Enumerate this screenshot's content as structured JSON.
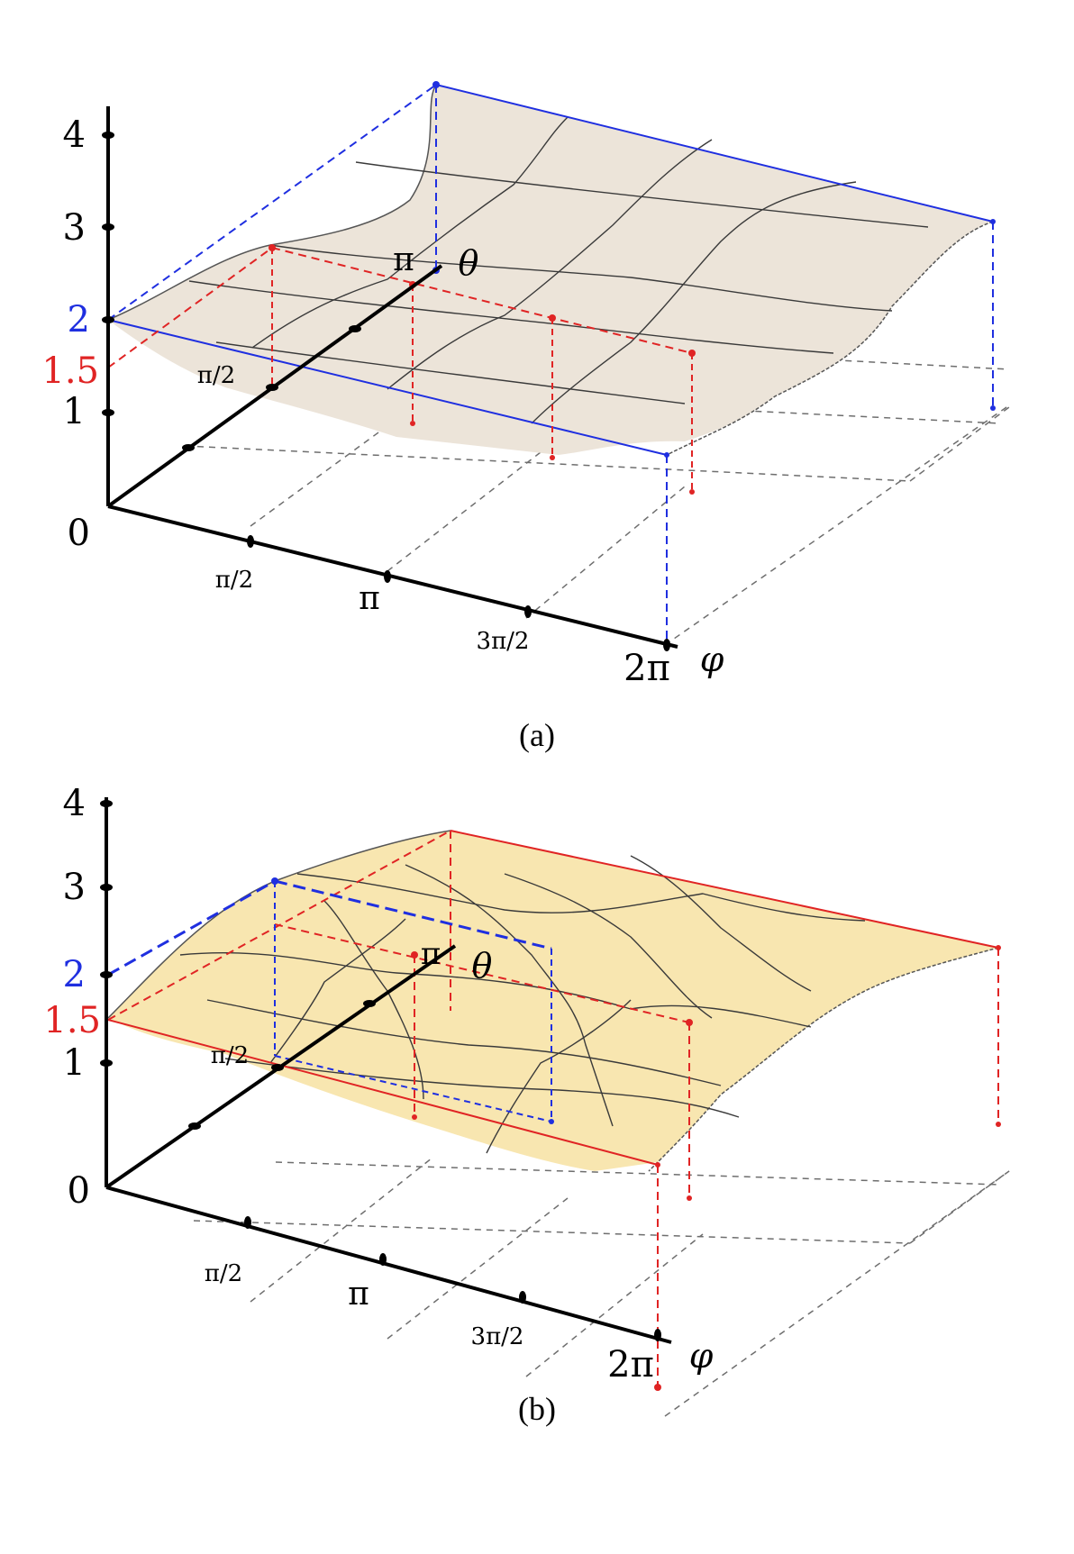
{
  "panels": [
    {
      "caption": "(a)",
      "surface_color": "#ece4d9",
      "z_ticks": [
        "0",
        "1",
        "2",
        "3",
        "4"
      ],
      "z_markers": [
        {
          "label": "2",
          "value": 2,
          "color": "#1f2fe0"
        },
        {
          "label": "1.5",
          "value": 1.5,
          "color": "#e02424"
        }
      ],
      "theta_ticks": [
        "π/2",
        "π"
      ],
      "theta_label": "θ",
      "phi_ticks": [
        "π/2",
        "π",
        "3π/2",
        "2π"
      ],
      "phi_label": "φ",
      "blue_rect": {
        "z": 2,
        "theta_max": "π",
        "phi_max": "2π"
      },
      "red_rect": {
        "z": 1.5,
        "theta_max": "π/2",
        "phi_max": "3π/2"
      }
    },
    {
      "caption": "(b)",
      "surface_color": "#f8e6b0",
      "z_ticks": [
        "0",
        "1",
        "2",
        "3",
        "4"
      ],
      "z_markers": [
        {
          "label": "2",
          "value": 2,
          "color": "#1f2fe0"
        },
        {
          "label": "1.5",
          "value": 1.5,
          "color": "#e02424"
        }
      ],
      "theta_ticks": [
        "π/2",
        "π"
      ],
      "theta_label": "θ",
      "phi_ticks": [
        "π/2",
        "π",
        "3π/2",
        "2π"
      ],
      "phi_label": "φ",
      "blue_rect": {
        "z": 2,
        "theta_max": "π/2",
        "phi_max": "π"
      },
      "red_rect": {
        "z": 1.5,
        "theta_max": "π",
        "phi_max": "2π"
      }
    }
  ],
  "colors": {
    "blue": "#1f2fe0",
    "red": "#e02424",
    "axis": "#000000",
    "grid": "#6e6e6e",
    "mesh": "#3a3a3a"
  }
}
